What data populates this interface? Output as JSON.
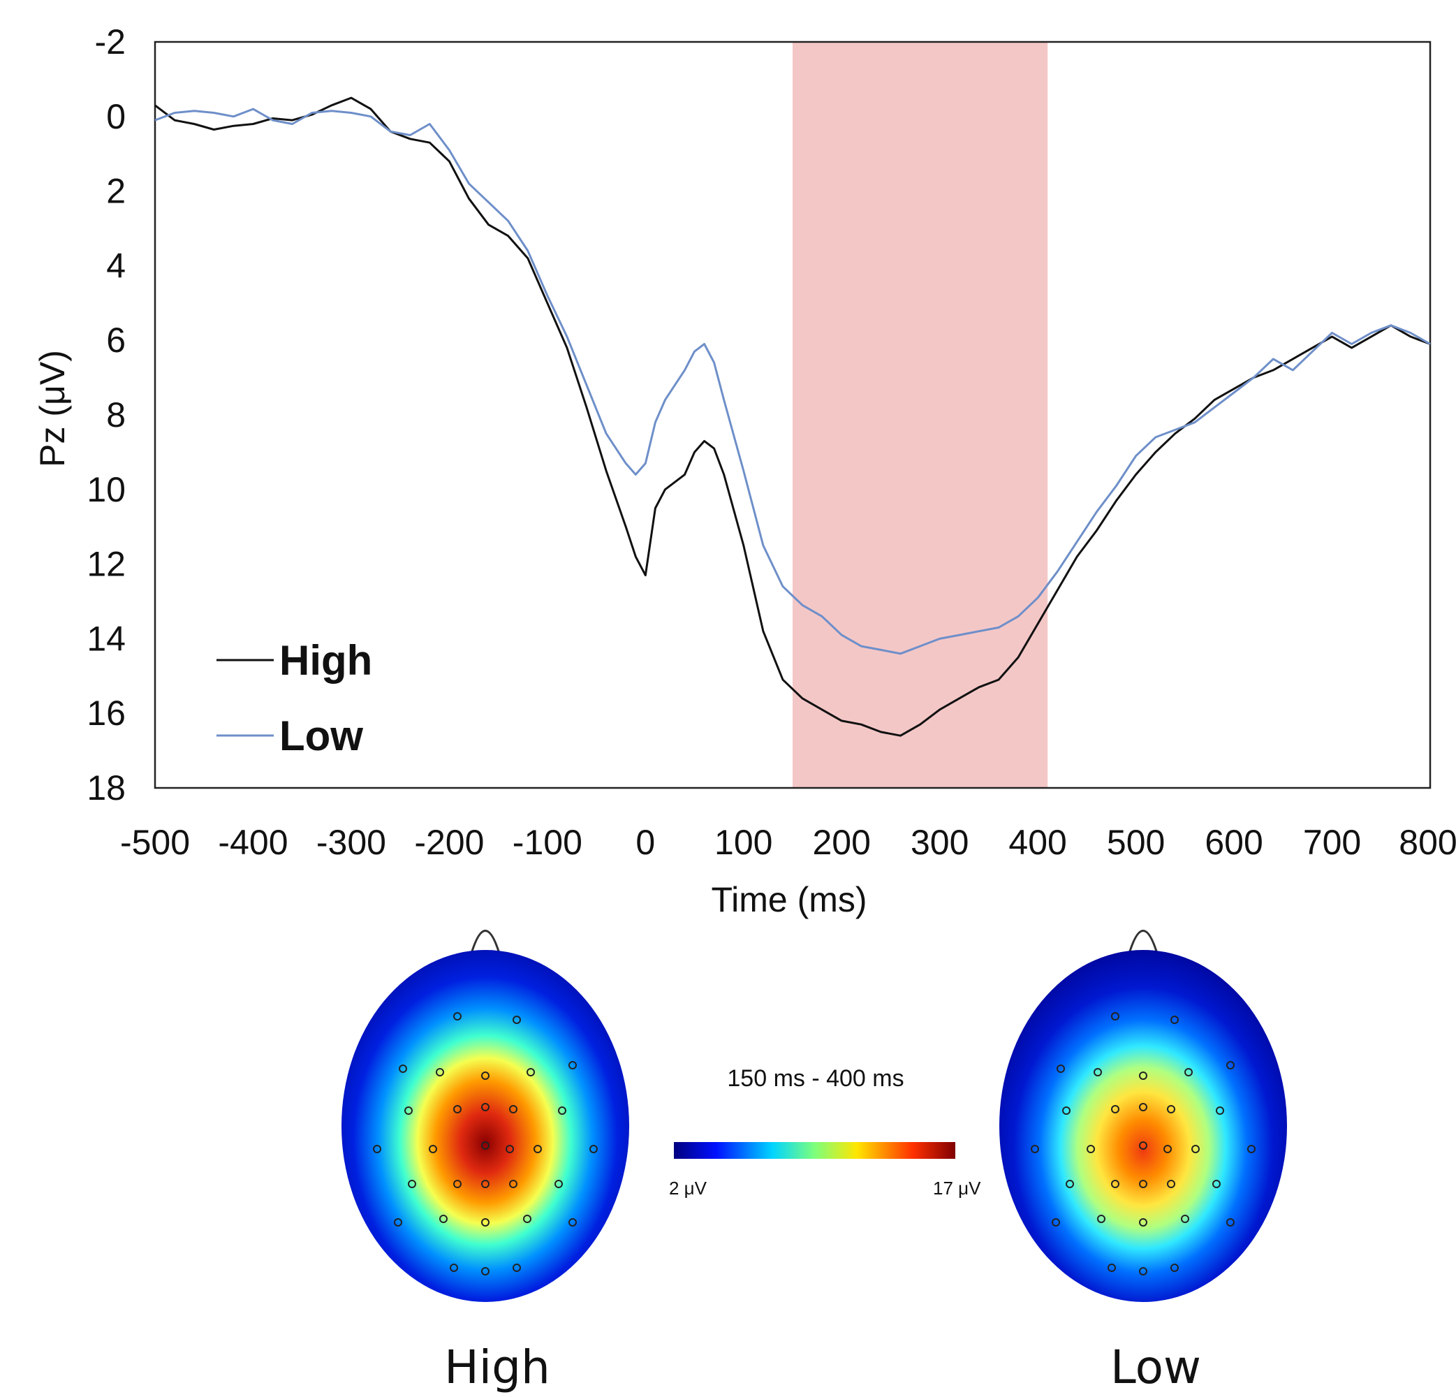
{
  "chart_data": {
    "type": "line",
    "xlabel": "Time (ms)",
    "ylabel": "Pz (μV)",
    "xlim": [
      -500,
      800
    ],
    "ylim": [
      -2,
      18
    ],
    "y_inverted": true,
    "xticks": [
      "-500",
      "-400",
      "-300",
      "-200",
      "-100",
      "0",
      "100",
      "200",
      "300",
      "400",
      "500",
      "600",
      "700",
      "800"
    ],
    "yticks": [
      "-2",
      "0",
      "2",
      "4",
      "6",
      "8",
      "10",
      "12",
      "14",
      "16",
      "18"
    ],
    "grid": false,
    "legend": "bottom-left",
    "highlight_window": {
      "x_start": 150,
      "x_end": 410,
      "color": "#f4c7c7"
    },
    "series": [
      {
        "name": "High",
        "color": "#111111",
        "x": [
          -500,
          -480,
          -460,
          -440,
          -420,
          -400,
          -380,
          -360,
          -340,
          -320,
          -300,
          -280,
          -260,
          -240,
          -220,
          -200,
          -180,
          -160,
          -140,
          -120,
          -100,
          -80,
          -60,
          -40,
          -20,
          -10,
          0,
          10,
          20,
          40,
          50,
          60,
          70,
          80,
          100,
          120,
          140,
          160,
          180,
          200,
          220,
          240,
          260,
          280,
          300,
          320,
          340,
          360,
          380,
          400,
          420,
          440,
          460,
          480,
          500,
          520,
          540,
          560,
          580,
          600,
          620,
          640,
          660,
          680,
          700,
          720,
          740,
          760,
          780,
          800
        ],
        "values": [
          -0.3,
          0.1,
          0.2,
          0.35,
          0.25,
          0.2,
          0.05,
          0.1,
          -0.05,
          -0.3,
          -0.5,
          -0.2,
          0.4,
          0.6,
          0.7,
          1.2,
          2.2,
          2.9,
          3.2,
          3.8,
          5.0,
          6.2,
          7.8,
          9.5,
          11.0,
          11.8,
          12.3,
          10.5,
          10.0,
          9.6,
          9.0,
          8.7,
          8.9,
          9.6,
          11.5,
          13.8,
          15.1,
          15.6,
          15.9,
          16.2,
          16.3,
          16.5,
          16.6,
          16.3,
          15.9,
          15.6,
          15.3,
          15.1,
          14.5,
          13.6,
          12.7,
          11.8,
          11.1,
          10.3,
          9.6,
          9.0,
          8.5,
          8.1,
          7.6,
          7.3,
          7.0,
          6.8,
          6.5,
          6.2,
          5.9,
          6.2,
          5.9,
          5.6,
          5.9,
          6.1
        ]
      },
      {
        "name": "Low",
        "color": "#6e8fc9",
        "x": [
          -500,
          -480,
          -460,
          -440,
          -420,
          -400,
          -380,
          -360,
          -340,
          -320,
          -300,
          -280,
          -260,
          -240,
          -220,
          -200,
          -180,
          -160,
          -140,
          -120,
          -100,
          -80,
          -60,
          -40,
          -20,
          -10,
          0,
          10,
          20,
          40,
          50,
          60,
          70,
          80,
          100,
          120,
          140,
          160,
          180,
          200,
          220,
          240,
          260,
          280,
          300,
          320,
          340,
          360,
          380,
          400,
          420,
          440,
          460,
          480,
          500,
          520,
          540,
          560,
          580,
          600,
          620,
          640,
          660,
          680,
          700,
          720,
          740,
          760,
          780,
          800
        ],
        "values": [
          0.1,
          -0.1,
          -0.15,
          -0.1,
          0.0,
          -0.2,
          0.1,
          0.2,
          -0.1,
          -0.15,
          -0.1,
          0.0,
          0.4,
          0.5,
          0.2,
          0.9,
          1.8,
          2.3,
          2.8,
          3.6,
          4.8,
          5.9,
          7.2,
          8.5,
          9.3,
          9.6,
          9.3,
          8.2,
          7.6,
          6.8,
          6.3,
          6.1,
          6.6,
          7.6,
          9.5,
          11.5,
          12.6,
          13.1,
          13.4,
          13.9,
          14.2,
          14.3,
          14.4,
          14.2,
          14.0,
          13.9,
          13.8,
          13.7,
          13.4,
          12.9,
          12.2,
          11.4,
          10.6,
          9.9,
          9.1,
          8.6,
          8.4,
          8.2,
          7.8,
          7.4,
          7.0,
          6.5,
          6.8,
          6.3,
          5.8,
          6.1,
          5.8,
          5.6,
          5.8,
          6.1
        ]
      }
    ]
  },
  "topomaps": {
    "time_window": "150 ms - 400 ms",
    "scale_min_label": "2 μV",
    "scale_max_label": "17 μV",
    "high": {
      "label": "High",
      "peak_level": 1.0
    },
    "low": {
      "label": "Low",
      "peak_level": 0.72
    }
  }
}
